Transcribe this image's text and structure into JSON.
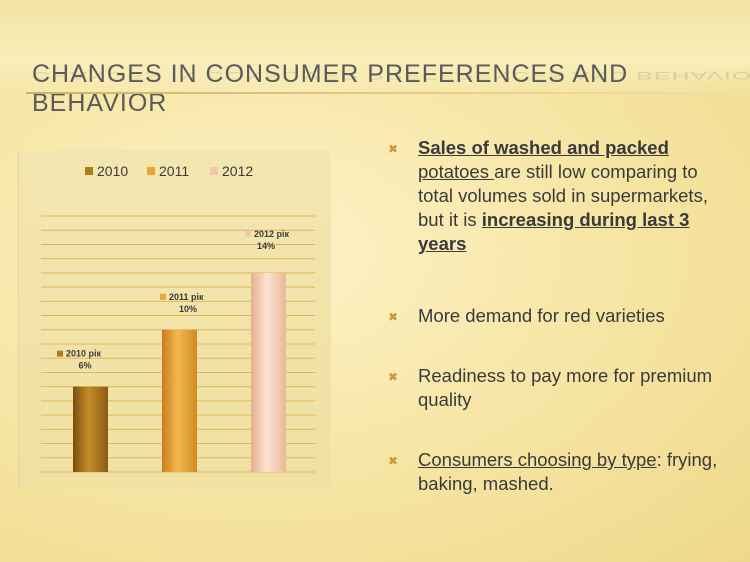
{
  "slide": {
    "title": "CHANGES IN CONSUMER PREFERENCES AND BEHAVIOR"
  },
  "bullets": {
    "b1": {
      "p1": "Sales of ",
      "p2": "washed and packed",
      "p3": "potatoes ",
      "p4": "are still low comparing to total volumes sold in supermarkets, but  it is ",
      "p5": "increasing during last 3 years"
    },
    "b2": "More demand for red varieties",
    "b3": "Readiness to pay more for premium quality",
    "b4": {
      "p1": "Consumers choosing by type",
      "p2": ":",
      "p3": "frying, baking, mashed."
    }
  },
  "chart_data": {
    "type": "bar",
    "categories": [
      "2010",
      "2011",
      "2012"
    ],
    "values": [
      6,
      10,
      14
    ],
    "unit": "%",
    "legend": [
      "2010",
      "2011",
      "2012"
    ],
    "legend_position": "top",
    "data_labels": [
      {
        "name": "2010 рік",
        "value": "6%"
      },
      {
        "name": "2011 рік",
        "value": "10%"
      },
      {
        "name": "2012 рік",
        "value": "14%"
      }
    ],
    "ylim": [
      0,
      18
    ],
    "grid": true,
    "colors": [
      "#b07a1e",
      "#e9a53a",
      "#f0c8ac"
    ]
  }
}
